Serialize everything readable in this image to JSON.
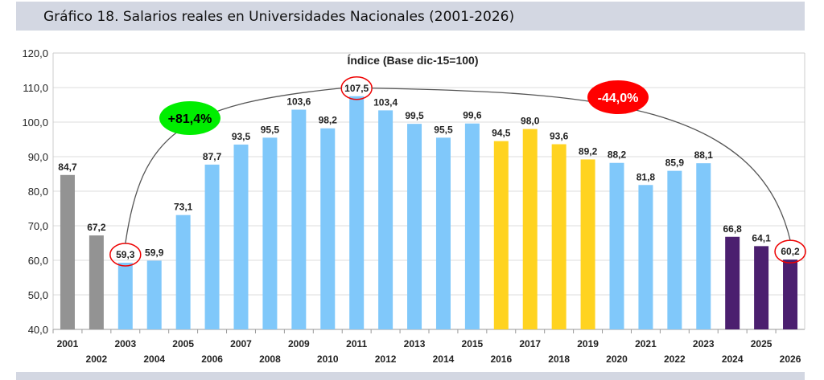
{
  "header": {
    "title": "Gráfico 18. Salarios reales en Universidades Nacionales (2001-2026)"
  },
  "chart_data": {
    "type": "bar",
    "title": "Índice (Base dic-15=100)",
    "categories": [
      "2001",
      "2002",
      "2003",
      "2004",
      "2005",
      "2006",
      "2007",
      "2008",
      "2009",
      "2010",
      "2011",
      "2012",
      "2013",
      "2014",
      "2015",
      "2016",
      "2017",
      "2018",
      "2019",
      "2020",
      "2021",
      "2022",
      "2023",
      "2024",
      "2025",
      "2026"
    ],
    "values": [
      84.7,
      67.2,
      59.3,
      59.9,
      73.1,
      87.7,
      93.5,
      95.5,
      103.6,
      98.2,
      107.5,
      103.4,
      99.5,
      95.5,
      99.6,
      94.5,
      98.0,
      93.6,
      89.2,
      88.2,
      81.8,
      85.9,
      88.1,
      66.8,
      64.1,
      60.2
    ],
    "value_labels": [
      "84,7",
      "67,2",
      "59,3",
      "59,9",
      "73,1",
      "87,7",
      "93,5",
      "95,5",
      "103,6",
      "98,2",
      "107,5",
      "103,4",
      "99,5",
      "95,5",
      "99,6",
      "94,5",
      "98,0",
      "93,6",
      "89,2",
      "88,2",
      "81,8",
      "85,9",
      "88,1",
      "66,8",
      "64,1",
      "60,2"
    ],
    "bar_colors": [
      "#939393",
      "#939393",
      "#80c8fa",
      "#80c8fa",
      "#80c8fa",
      "#80c8fa",
      "#80c8fa",
      "#80c8fa",
      "#80c8fa",
      "#80c8fa",
      "#80c8fa",
      "#80c8fa",
      "#80c8fa",
      "#80c8fa",
      "#80c8fa",
      "#ffd320",
      "#ffd320",
      "#ffd320",
      "#ffd320",
      "#80c8fa",
      "#80c8fa",
      "#80c8fa",
      "#80c8fa",
      "#4b1f6f",
      "#4b1f6f",
      "#4b1f6f"
    ],
    "ylim": [
      40,
      120
    ],
    "yticks": [
      "40,0",
      "50,0",
      "60,0",
      "70,0",
      "80,0",
      "90,0",
      "100,0",
      "110,0",
      "120,0"
    ],
    "grid": true,
    "highlighted": [
      "2003",
      "2011",
      "2026"
    ],
    "annotations": [
      {
        "text": "+81,4%",
        "from": "2003",
        "to": "2011",
        "color": "#00ee00"
      },
      {
        "text": "-44,0%",
        "from": "2011",
        "to": "2026",
        "color": "#ff0000"
      }
    ]
  }
}
